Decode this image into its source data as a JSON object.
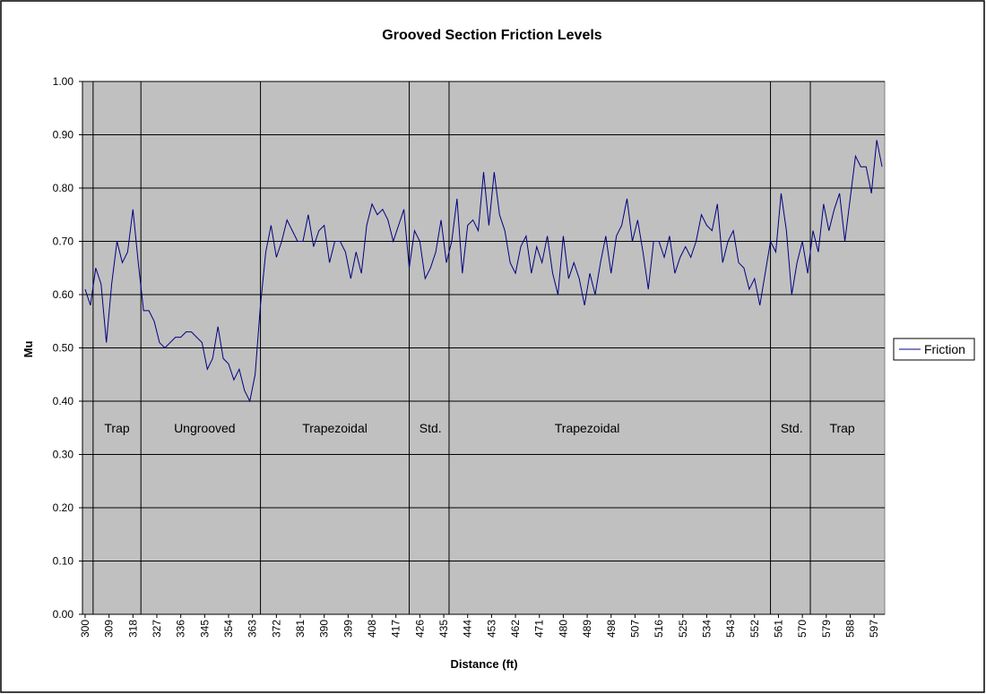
{
  "chart_data": {
    "type": "line",
    "title": "Grooved Section Friction Levels",
    "x_label": "Distance (ft)",
    "y_label": "Mu",
    "legend": "right",
    "grid": true,
    "xlim": [
      299,
      601
    ],
    "xticks": [
      300,
      309,
      318,
      327,
      336,
      345,
      354,
      363,
      372,
      381,
      390,
      399,
      408,
      417,
      426,
      435,
      444,
      453,
      462,
      471,
      480,
      489,
      498,
      507,
      516,
      525,
      534,
      543,
      552,
      561,
      570,
      579,
      588,
      597
    ],
    "ylim": [
      0,
      1
    ],
    "yticks": [
      {
        "value": 0,
        "label": "0.00"
      },
      {
        "value": 0.1,
        "label": "0.10"
      },
      {
        "value": 0.2,
        "label": "0.20"
      },
      {
        "value": 0.3,
        "label": "0.30"
      },
      {
        "value": 0.4,
        "label": "0.40"
      },
      {
        "value": 0.5,
        "label": "0.50"
      },
      {
        "value": 0.6,
        "label": "0.60"
      },
      {
        "value": 0.7,
        "label": "0.70"
      },
      {
        "value": 0.8,
        "label": "0.80"
      },
      {
        "value": 0.9,
        "label": "0.90"
      },
      {
        "value": 1,
        "label": "1.00"
      }
    ],
    "dividers": [
      303,
      321,
      366,
      422,
      437,
      558,
      573
    ],
    "sections": [
      {
        "label": "Trap",
        "x": 312
      },
      {
        "label": "Ungrooved",
        "x": 345
      },
      {
        "label": "Trapezoidal",
        "x": 394
      },
      {
        "label": "Std.",
        "x": 430
      },
      {
        "label": "Trapezoidal",
        "x": 489
      },
      {
        "label": "Std.",
        "x": 566
      },
      {
        "label": "Trap",
        "x": 585
      }
    ],
    "x": [
      300,
      302,
      304,
      306,
      308,
      310,
      312,
      314,
      316,
      318,
      320,
      322,
      324,
      326,
      328,
      330,
      332,
      334,
      336,
      338,
      340,
      342,
      344,
      346,
      348,
      350,
      352,
      354,
      356,
      358,
      360,
      362,
      364,
      366,
      368,
      370,
      372,
      374,
      376,
      378,
      380,
      382,
      384,
      386,
      388,
      390,
      392,
      394,
      396,
      398,
      400,
      402,
      404,
      406,
      408,
      410,
      412,
      414,
      416,
      418,
      420,
      422,
      424,
      426,
      428,
      430,
      432,
      434,
      436,
      438,
      440,
      442,
      444,
      446,
      448,
      450,
      452,
      454,
      456,
      458,
      460,
      462,
      464,
      466,
      468,
      470,
      472,
      474,
      476,
      478,
      480,
      482,
      484,
      486,
      488,
      490,
      492,
      494,
      496,
      498,
      500,
      502,
      504,
      506,
      508,
      510,
      512,
      514,
      516,
      518,
      520,
      522,
      524,
      526,
      528,
      530,
      532,
      534,
      536,
      538,
      540,
      542,
      544,
      546,
      548,
      550,
      552,
      554,
      556,
      558,
      560,
      562,
      564,
      566,
      568,
      570,
      572,
      574,
      576,
      578,
      580,
      582,
      584,
      586,
      588,
      590,
      592,
      594,
      596,
      598,
      600
    ],
    "series": [
      {
        "name": "Friction",
        "color": "#000080",
        "values": [
          0.61,
          0.58,
          0.65,
          0.62,
          0.51,
          0.62,
          0.7,
          0.66,
          0.68,
          0.76,
          0.66,
          0.57,
          0.57,
          0.55,
          0.51,
          0.5,
          0.51,
          0.52,
          0.52,
          0.53,
          0.53,
          0.52,
          0.51,
          0.46,
          0.48,
          0.54,
          0.48,
          0.47,
          0.44,
          0.46,
          0.42,
          0.4,
          0.45,
          0.58,
          0.68,
          0.73,
          0.67,
          0.7,
          0.74,
          0.72,
          0.7,
          0.7,
          0.75,
          0.69,
          0.72,
          0.73,
          0.66,
          0.7,
          0.7,
          0.68,
          0.63,
          0.68,
          0.64,
          0.73,
          0.77,
          0.75,
          0.76,
          0.74,
          0.7,
          0.73,
          0.76,
          0.65,
          0.72,
          0.7,
          0.63,
          0.65,
          0.68,
          0.74,
          0.66,
          0.7,
          0.78,
          0.64,
          0.73,
          0.74,
          0.72,
          0.83,
          0.73,
          0.83,
          0.75,
          0.72,
          0.66,
          0.64,
          0.69,
          0.71,
          0.64,
          0.69,
          0.66,
          0.71,
          0.64,
          0.6,
          0.71,
          0.63,
          0.66,
          0.63,
          0.58,
          0.64,
          0.6,
          0.66,
          0.71,
          0.64,
          0.71,
          0.73,
          0.78,
          0.7,
          0.74,
          0.68,
          0.61,
          0.7,
          0.7,
          0.67,
          0.71,
          0.64,
          0.67,
          0.69,
          0.67,
          0.7,
          0.75,
          0.73,
          0.72,
          0.77,
          0.66,
          0.7,
          0.72,
          0.66,
          0.65,
          0.61,
          0.63,
          0.58,
          0.64,
          0.7,
          0.68,
          0.79,
          0.72,
          0.6,
          0.66,
          0.7,
          0.64,
          0.72,
          0.68,
          0.77,
          0.72,
          0.76,
          0.79,
          0.7,
          0.78,
          0.86,
          0.84,
          0.84,
          0.79,
          0.89,
          0.84
        ]
      }
    ]
  }
}
